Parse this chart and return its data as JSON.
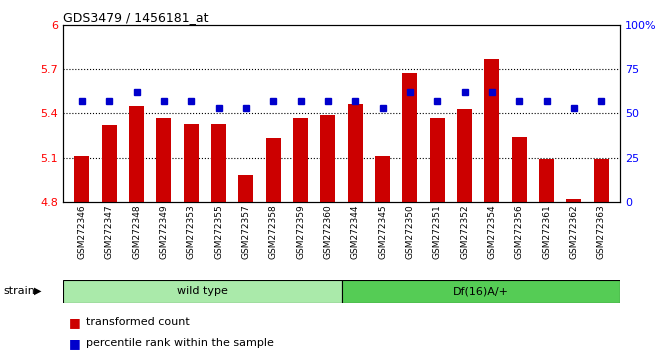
{
  "title": "GDS3479 / 1456181_at",
  "samples": [
    "GSM272346",
    "GSM272347",
    "GSM272348",
    "GSM272349",
    "GSM272353",
    "GSM272355",
    "GSM272357",
    "GSM272358",
    "GSM272359",
    "GSM272360",
    "GSM272344",
    "GSM272345",
    "GSM272350",
    "GSM272351",
    "GSM272352",
    "GSM272354",
    "GSM272356",
    "GSM272361",
    "GSM272362",
    "GSM272363"
  ],
  "bar_values": [
    5.11,
    5.32,
    5.45,
    5.37,
    5.33,
    5.33,
    4.98,
    5.23,
    5.37,
    5.39,
    5.46,
    5.11,
    5.67,
    5.37,
    5.43,
    5.77,
    5.24,
    5.09,
    4.82,
    5.09
  ],
  "dot_values": [
    57,
    57,
    62,
    57,
    57,
    53,
    53,
    57,
    57,
    57,
    57,
    53,
    62,
    57,
    62,
    62,
    57,
    57,
    53,
    57
  ],
  "bar_bottom": 4.8,
  "ylim_left": [
    4.8,
    6.0
  ],
  "ylim_right": [
    0,
    100
  ],
  "yticks_left": [
    4.8,
    5.1,
    5.4,
    5.7,
    6.0
  ],
  "yticks_right": [
    0,
    25,
    50,
    75,
    100
  ],
  "ytick_labels_left": [
    "4.8",
    "5.1",
    "5.4",
    "5.7",
    "6"
  ],
  "ytick_labels_right": [
    "0",
    "25",
    "50",
    "75",
    "100%"
  ],
  "hlines": [
    5.1,
    5.4,
    5.7
  ],
  "bar_color": "#cc0000",
  "dot_color": "#0000cc",
  "wild_type_count": 10,
  "wild_type_label": "wild type",
  "df16_label": "Df(16)A/+",
  "strain_label": "strain",
  "legend_bar_label": "transformed count",
  "legend_dot_label": "percentile rank within the sample",
  "group_color_wt": "#aaeaaa",
  "group_color_df": "#55cc55",
  "bg_color": "#d8d8d8"
}
